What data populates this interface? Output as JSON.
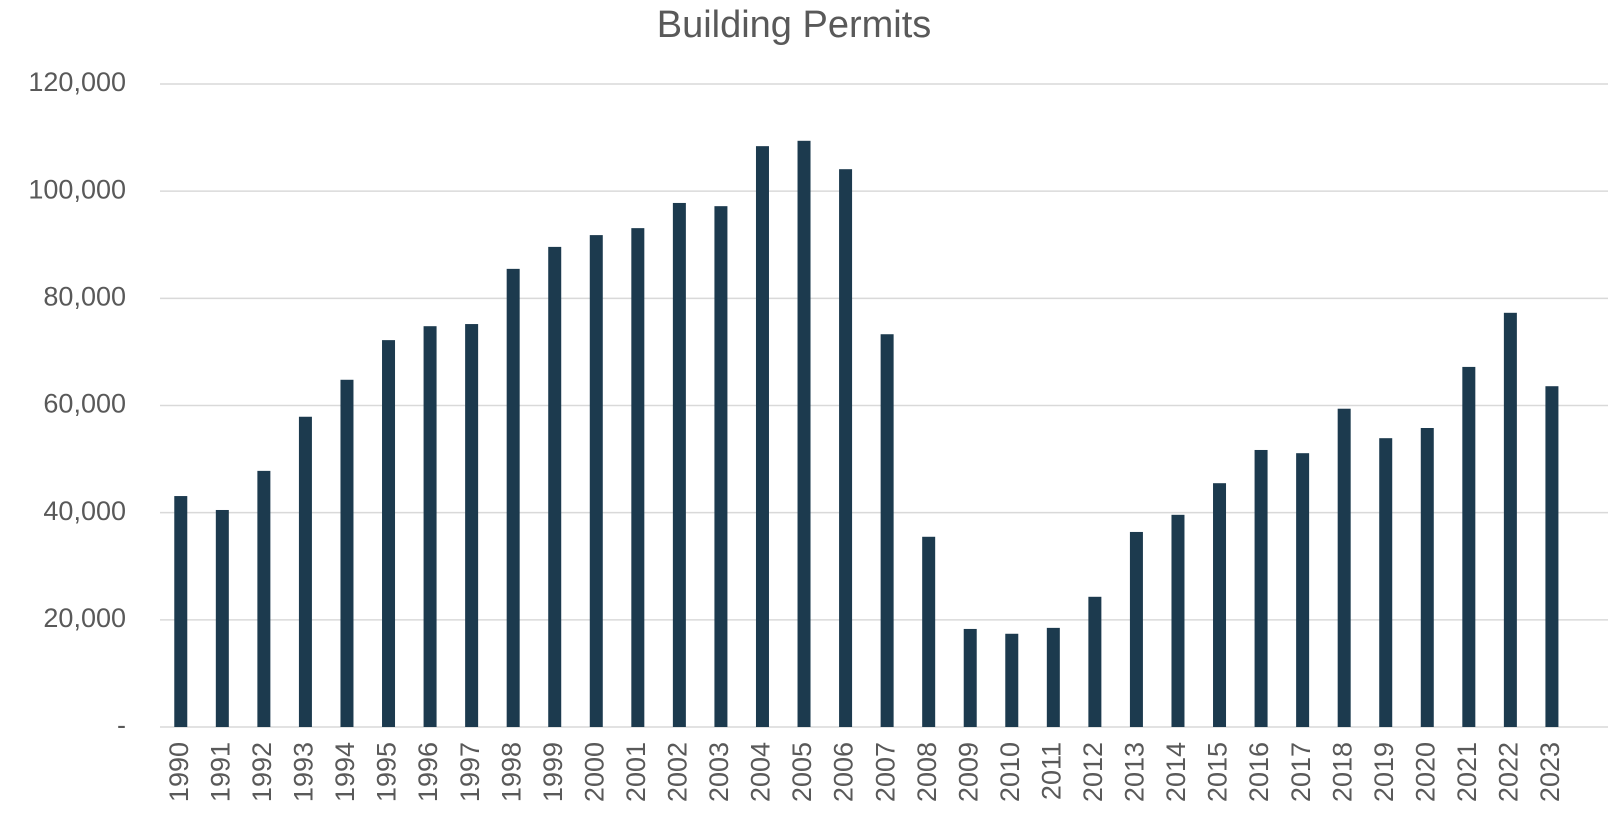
{
  "chart_data": {
    "type": "bar",
    "title": "Building Permits",
    "categories": [
      "1990",
      "1991",
      "1992",
      "1993",
      "1994",
      "1995",
      "1996",
      "1997",
      "1998",
      "1999",
      "2000",
      "2001",
      "2002",
      "2003",
      "2004",
      "2005",
      "2006",
      "2007",
      "2008",
      "2009",
      "2010",
      "2011",
      "2012",
      "2013",
      "2014",
      "2015",
      "2016",
      "2017",
      "2018",
      "2019",
      "2020",
      "2021",
      "2022",
      "2023"
    ],
    "values": [
      43100,
      40500,
      47800,
      57900,
      64800,
      72200,
      74800,
      75200,
      85500,
      89600,
      91800,
      93100,
      97800,
      97200,
      108400,
      109400,
      104100,
      73300,
      35500,
      18300,
      17400,
      18500,
      24300,
      36400,
      39600,
      45500,
      51700,
      51100,
      59400,
      53900,
      55800,
      67200,
      77300,
      63600
    ],
    "color": "#1c3a4e",
    "ylim": [
      0,
      120000
    ],
    "yticks": [
      {
        "value": 0,
        "label": "-"
      },
      {
        "value": 20000,
        "label": "20,000"
      },
      {
        "value": 40000,
        "label": "40,000"
      },
      {
        "value": 60000,
        "label": "60,000"
      },
      {
        "value": 80000,
        "label": "80,000"
      },
      {
        "value": 100000,
        "label": "100,000"
      },
      {
        "value": 120000,
        "label": "120,000"
      }
    ],
    "grid": true
  }
}
